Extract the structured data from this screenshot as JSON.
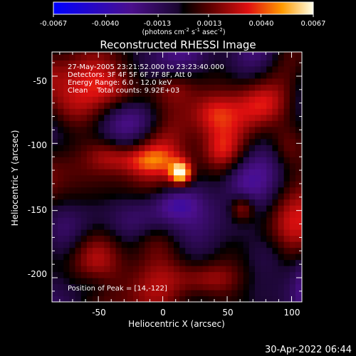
{
  "chart_data": {
    "type": "heatmap",
    "title": "Reconstructed RHESSI Image",
    "xlabel": "Heliocentric X (arcsec)",
    "ylabel": "Heliocentric Y (arcsec)",
    "x_ticks": [
      "-50",
      "0",
      "50",
      "100"
    ],
    "y_ticks": [
      "-50",
      "-100",
      "-150",
      "-200"
    ],
    "x_tick_values": [
      -50,
      0,
      50,
      100
    ],
    "y_tick_values": [
      -50,
      -100,
      -150,
      -200
    ],
    "xlim": [
      -86,
      108
    ],
    "ylim": [
      -218,
      -32
    ],
    "colorbar": {
      "min": -0.0067,
      "max": 0.0067,
      "tick_labels": [
        "-0.0067",
        "-0.0040",
        "-0.0013",
        "0.0013",
        "0.0040",
        "0.0067"
      ],
      "tick_values": [
        -0.0067,
        -0.004,
        -0.0013,
        0.0013,
        0.004,
        0.0067
      ],
      "units_line": "(photons cm-2 s-1 asec-2)"
    },
    "annotations": [
      "27-May-2005 23:21:52.000 to 23:23:40.000",
      "Detectors: 3F 4F 5F 6F 7F 8F, Att 0",
      "Energy Range: 6.0 - 12.0 keV",
      "Clean    Total counts: 9.92E+03"
    ],
    "peak_label": "Position of Peak = [14,-122]",
    "peak": {
      "x": 14,
      "y": -122,
      "value": 0.0067
    },
    "sources": [
      {
        "x": 14,
        "y": -122,
        "sx": 6,
        "sy": 6,
        "value": 0.0066
      },
      {
        "x": 62,
        "y": -148,
        "sx": 7,
        "sy": 7,
        "value": 0.0032
      },
      {
        "x": -12,
        "y": -112,
        "sx": 18,
        "sy": 7,
        "value": 0.0024
      },
      {
        "x": -42,
        "y": -108,
        "sx": 12,
        "sy": 9,
        "value": 0.0022
      },
      {
        "x": -74,
        "y": -75,
        "sx": 14,
        "sy": 14,
        "value": 0.0026
      },
      {
        "x": -28,
        "y": -62,
        "sx": 16,
        "sy": 10,
        "value": 0.0022
      },
      {
        "x": 8,
        "y": -58,
        "sx": 12,
        "sy": 8,
        "value": 0.0016
      },
      {
        "x": 40,
        "y": -78,
        "sx": 12,
        "sy": 10,
        "value": 0.002
      },
      {
        "x": 78,
        "y": -70,
        "sx": 14,
        "sy": 12,
        "value": 0.0024
      },
      {
        "x": 96,
        "y": -102,
        "sx": 10,
        "sy": 12,
        "value": 0.002
      },
      {
        "x": 46,
        "y": -105,
        "sx": 10,
        "sy": 10,
        "value": 0.0018
      },
      {
        "x": -46,
        "y": -180,
        "sx": 18,
        "sy": 14,
        "value": 0.0024
      },
      {
        "x": -8,
        "y": -172,
        "sx": 14,
        "sy": 10,
        "value": 0.0018
      },
      {
        "x": 34,
        "y": -200,
        "sx": 18,
        "sy": 8,
        "value": 0.0018
      },
      {
        "x": -70,
        "y": -145,
        "sx": 12,
        "sy": 12,
        "value": 0.001
      },
      {
        "x": 10,
        "y": -145,
        "sx": 12,
        "sy": 8,
        "value": -0.002
      },
      {
        "x": 85,
        "y": -180,
        "sx": 12,
        "sy": 12,
        "value": -0.0015
      },
      {
        "x": -55,
        "y": -205,
        "sx": 10,
        "sy": 8,
        "value": -0.0012
      },
      {
        "x": 60,
        "y": -125,
        "sx": 10,
        "sy": 10,
        "value": -0.001
      },
      {
        "x": -10,
        "y": -85,
        "sx": 12,
        "sy": 8,
        "value": -0.0008
      }
    ]
  },
  "footer": {
    "timestamp": "30-Apr-2022 06:44"
  }
}
